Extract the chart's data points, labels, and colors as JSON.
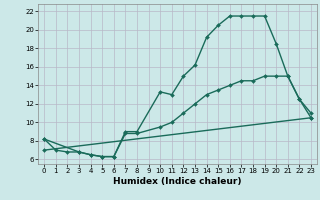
{
  "title": "",
  "xlabel": "Humidex (Indice chaleur)",
  "background_color": "#cce8e8",
  "grid_color": "#b8b8c8",
  "line_color": "#1a6b5a",
  "x_ticks": [
    0,
    1,
    2,
    3,
    4,
    5,
    6,
    7,
    8,
    9,
    10,
    11,
    12,
    13,
    14,
    15,
    16,
    17,
    18,
    19,
    20,
    21,
    22,
    23
  ],
  "y_ticks": [
    6,
    8,
    10,
    12,
    14,
    16,
    18,
    20,
    22
  ],
  "ylim": [
    5.5,
    22.8
  ],
  "xlim": [
    -0.5,
    23.5
  ],
  "line1_x": [
    0,
    1,
    2,
    3,
    4,
    5,
    6,
    7,
    8,
    10,
    11,
    12,
    13,
    14,
    15,
    16,
    17,
    18,
    19,
    20,
    21,
    22,
    23
  ],
  "line1_y": [
    8.2,
    7.0,
    6.8,
    6.8,
    6.5,
    6.3,
    6.3,
    9.0,
    9.0,
    13.3,
    13.0,
    15.0,
    16.2,
    19.2,
    20.5,
    21.5,
    21.5,
    21.5,
    21.5,
    18.5,
    15.0,
    12.5,
    11.0
  ],
  "line2_x": [
    0,
    3,
    4,
    5,
    6,
    7,
    8,
    10,
    11,
    12,
    13,
    14,
    15,
    16,
    17,
    18,
    19,
    20,
    21,
    22,
    23
  ],
  "line2_y": [
    8.2,
    6.8,
    6.5,
    6.3,
    6.3,
    8.8,
    8.8,
    9.5,
    10.0,
    11.0,
    12.0,
    13.0,
    13.5,
    14.0,
    14.5,
    14.5,
    15.0,
    15.0,
    15.0,
    12.5,
    10.5
  ],
  "line3_x": [
    0,
    23
  ],
  "line3_y": [
    7.0,
    10.5
  ]
}
